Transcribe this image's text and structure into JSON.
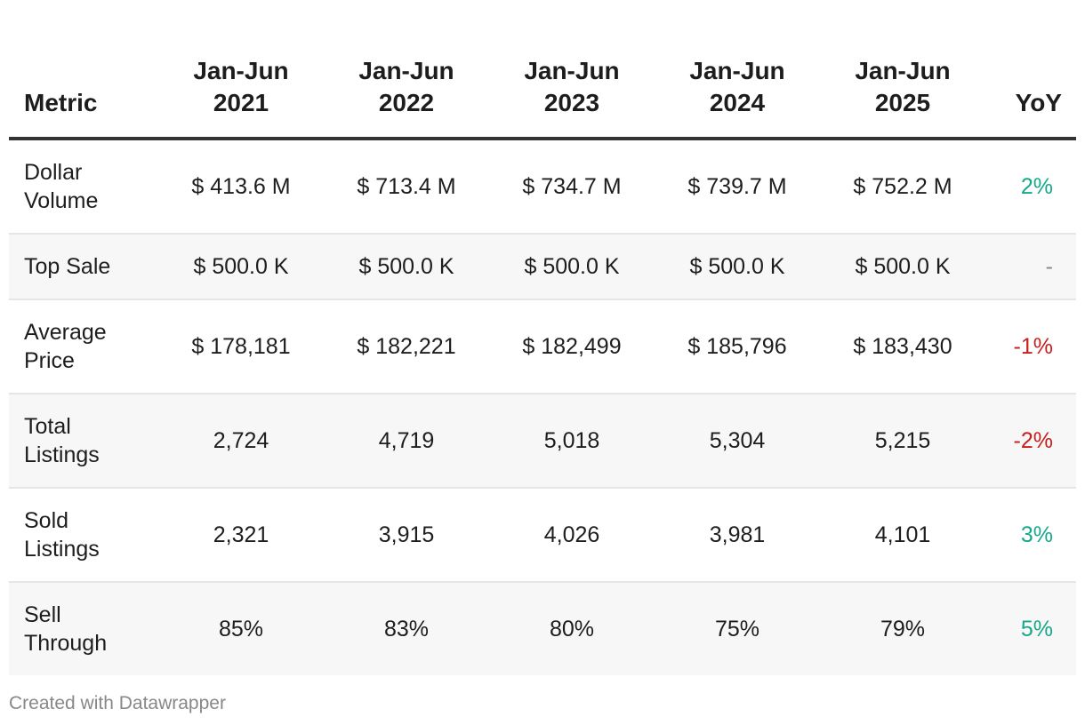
{
  "chart_data": {
    "type": "table",
    "columns": {
      "metric": "Metric",
      "periods": [
        {
          "line1": "Jan-Jun",
          "line2": "2021"
        },
        {
          "line1": "Jan-Jun",
          "line2": "2022"
        },
        {
          "line1": "Jan-Jun",
          "line2": "2023"
        },
        {
          "line1": "Jan-Jun",
          "line2": "2024"
        },
        {
          "line1": "Jan-Jun",
          "line2": "2025"
        }
      ],
      "yoy": "YoY"
    },
    "rows": [
      {
        "label": [
          "Dollar",
          "Volume"
        ],
        "values": [
          "$ 413.6 M",
          "$ 713.4 M",
          "$ 734.7 M",
          "$ 739.7 M",
          "$ 752.2 M"
        ],
        "yoy": "2%",
        "trend": "pos",
        "size": "tall"
      },
      {
        "label": [
          "Top Sale"
        ],
        "values": [
          "$ 500.0 K",
          "$ 500.0 K",
          "$ 500.0 K",
          "$ 500.0 K",
          "$ 500.0 K"
        ],
        "yoy": "-",
        "trend": "flat",
        "size": "short"
      },
      {
        "label": [
          "Average",
          "Price"
        ],
        "values": [
          "$ 178,181",
          "$ 182,221",
          "$ 182,499",
          "$ 185,796",
          "$ 183,430"
        ],
        "yoy": "-1%",
        "trend": "neg",
        "size": "tall"
      },
      {
        "label": [
          "Total",
          "Listings"
        ],
        "values": [
          "2,724",
          "4,719",
          "5,018",
          "5,304",
          "5,215"
        ],
        "yoy": "-2%",
        "trend": "neg",
        "size": "tall"
      },
      {
        "label": [
          "Sold",
          "Listings"
        ],
        "values": [
          "2,321",
          "3,915",
          "4,026",
          "3,981",
          "4,101"
        ],
        "yoy": "3%",
        "trend": "pos",
        "size": "tall"
      },
      {
        "label": [
          "Sell",
          "Through"
        ],
        "values": [
          "85%",
          "83%",
          "80%",
          "75%",
          "79%"
        ],
        "yoy": "5%",
        "trend": "pos",
        "size": "tall"
      }
    ],
    "colors": {
      "positive": "#15a88a",
      "negative": "#c71e1d",
      "neutral": "#888888"
    }
  },
  "footer": {
    "credit": "Created with Datawrapper"
  }
}
